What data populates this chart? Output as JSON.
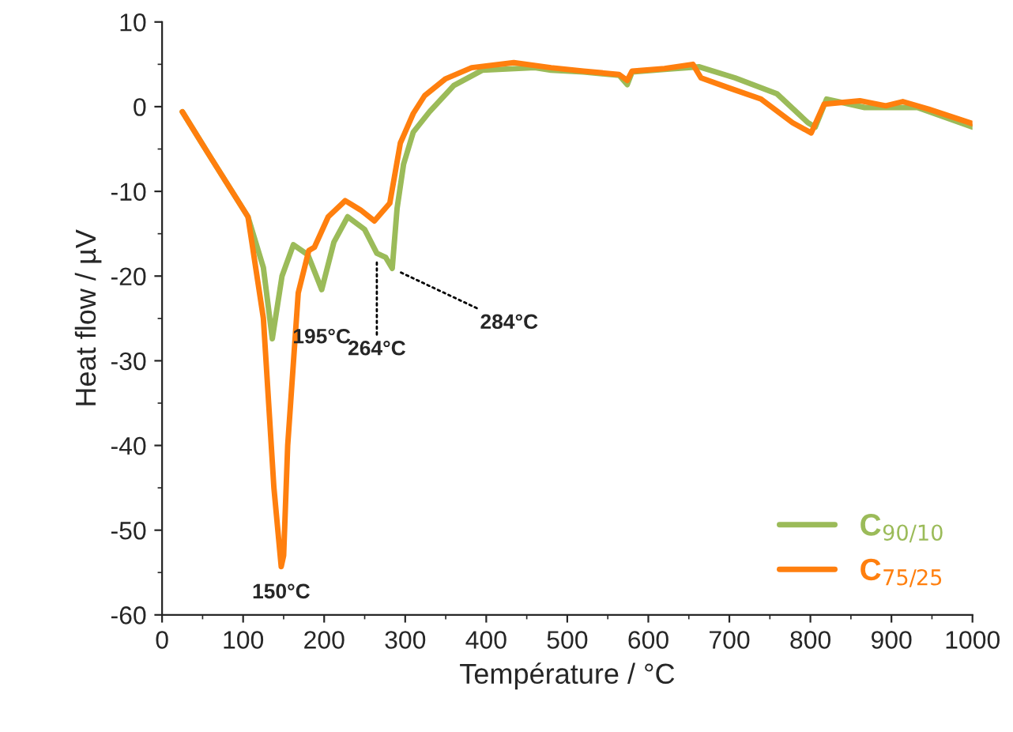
{
  "chart_data": {
    "type": "line",
    "xlabel": "Température / °C",
    "ylabel": "Heat flow / µV",
    "xlim": [
      0,
      1000
    ],
    "xticks": [
      0,
      100,
      200,
      300,
      400,
      500,
      600,
      700,
      800,
      900,
      1000
    ],
    "ylim": [
      -60,
      10
    ],
    "yticks": [
      -60,
      -50,
      -40,
      -30,
      -20,
      -10,
      0,
      10
    ],
    "grid": false,
    "legend": "bottom right",
    "marker": "none",
    "line_style": "solid",
    "series": [
      {
        "name": "C$_{90/10}$",
        "color": "#9bbb59",
        "x": [
          25,
          60,
          106,
          125,
          136,
          148,
          162,
          180,
          197,
          212,
          229,
          250,
          265,
          276,
          284,
          290,
          298,
          310,
          330,
          360,
          395,
          460,
          480,
          520,
          564,
          574,
          580,
          620,
          663,
          707,
          759,
          797,
          806,
          820,
          867,
          932,
          1000
        ],
        "values": [
          -0.6,
          -6,
          -13,
          -19,
          -27.4,
          -20,
          -16.3,
          -17.5,
          -21.6,
          -16,
          -13,
          -14.5,
          -17.3,
          -17.8,
          -19.1,
          -12,
          -6.8,
          -3,
          -0.6,
          2.5,
          4.3,
          4.6,
          4.3,
          4.1,
          3.7,
          2.6,
          4.1,
          4.4,
          4.7,
          3.4,
          1.5,
          -1.9,
          -2.4,
          0.9,
          -0.1,
          -0.1,
          -2.4
        ]
      },
      {
        "name": "C$_{75/25}$",
        "color": "#ff7f0e",
        "x": [
          25,
          60,
          106,
          125,
          138,
          147,
          150,
          155,
          168,
          181,
          188,
          205,
          226,
          245,
          262,
          281,
          294,
          310,
          324,
          350,
          382,
          434,
          480,
          520,
          564,
          574,
          580,
          620,
          655,
          665,
          700,
          739,
          778,
          801,
          817,
          861,
          893,
          914,
          946,
          1000
        ],
        "values": [
          -0.6,
          -6,
          -13,
          -25,
          -45,
          -54.3,
          -53,
          -40,
          -22,
          -17,
          -16.6,
          -13,
          -11.1,
          -12.2,
          -13.5,
          -11.4,
          -4.3,
          -0.8,
          1.3,
          3.3,
          4.6,
          5.2,
          4.6,
          4.2,
          3.8,
          3.1,
          4.2,
          4.5,
          5,
          3.4,
          2.2,
          0.9,
          -1.9,
          -3.1,
          0.3,
          0.7,
          0.1,
          0.6,
          -0.3,
          -2.0
        ]
      }
    ],
    "annotations": [
      {
        "text": "150°C",
        "x": 147,
        "y": -54.3
      },
      {
        "text": "195°C",
        "x": 197,
        "y": -21.6
      },
      {
        "text": "264°C",
        "x": 265,
        "y": -17.3
      },
      {
        "text": "284°C",
        "x": 284,
        "y": -19.1
      }
    ]
  }
}
